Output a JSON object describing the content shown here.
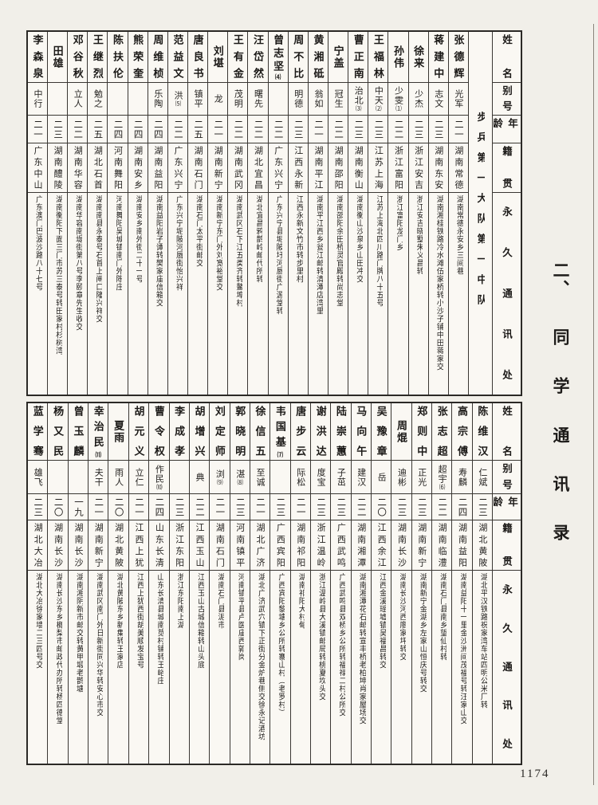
{
  "page": {
    "section_title": "二、同学通讯录",
    "page_number": "1174"
  },
  "table_headers": {
    "name": "姓名",
    "alias": "别号",
    "age": "年龄",
    "native_place": "籍贯",
    "address": "永久通讯处"
  },
  "sections": [
    {
      "unit": "步兵第一大队第一中队",
      "entries": [
        {
          "name": "张德辉",
          "alias": "光军",
          "age": "二一",
          "native": "湖南常德",
          "address": "湖南常德永安乡三间巷"
        },
        {
          "name": "蒋建中",
          "alias": "志文",
          "age": "二三",
          "native": "湖南东安",
          "address": "湖南湘桂铁路冷水滩伍家桥转小沙子铺中田蒋家交"
        },
        {
          "name": "徐来",
          "alias": "少杰",
          "age": "二三",
          "native": "浙江安吉",
          "address": "浙江安吉晓墅朱义昌转"
        },
        {
          "name": "孙伟",
          "alias": "少雯",
          "alias_note": "⑴",
          "age": "二二",
          "native": "浙江富阳",
          "address": "浙江富阳龙门乡"
        },
        {
          "name": "王福林",
          "alias": "中天",
          "alias_note": "⑵",
          "age": "二三",
          "native": "江苏上海",
          "address": "江苏上海北四川路门牌八十五号"
        },
        {
          "name": "曹正南",
          "alias": "治北",
          "alias_note": "⑶",
          "age": "二三",
          "native": "湖南衡山",
          "address": "湖南衡山沙泉乡山田冲交"
        },
        {
          "name": "宁盖",
          "alias": "冠生",
          "age": "二二",
          "native": "湖南邵阳",
          "address": "湖南邵阳余田桥灵官殿转尚志堂"
        },
        {
          "name": "黄湘砥",
          "alias": "翁如",
          "age": "二一",
          "native": "湖南平江",
          "address": "湖南平江西乡瓮江邮转清潭店湾里"
        },
        {
          "name": "周不比",
          "alias": "明德",
          "age": "二三",
          "native": "江西永新",
          "address": "江西永新文竹市转步里村"
        },
        {
          "name": "曾志坚",
          "name_note": "⑷",
          "alias": "",
          "age": "二二",
          "native": "广东兴宁",
          "address": "广东兴宁县坭陂圩河唇街广源堂转"
        },
        {
          "name": "汪岱然",
          "alias": "曙先",
          "age": "二二",
          "native": "湖北宜昌",
          "address": "湖北宜昌鸦鹊岭邮代所转"
        },
        {
          "name": "王有金",
          "alias": "茂明",
          "age": "二二",
          "native": "湖南武冈",
          "address": "湖南武冈石下江五类齐转鳌埠村"
        },
        {
          "name": "刘堪",
          "alias": "龙",
          "age": "二一",
          "native": "湖南新宁",
          "address": "湖南新宁东门外刘宽裕堂交"
        },
        {
          "name": "唐良书",
          "alias": "镇平",
          "age": "二五",
          "native": "湖南石门",
          "address": "湖南石门太平街邮交"
        },
        {
          "name": "范益文",
          "alias": "洪",
          "alias_note": "⑸",
          "age": "二二",
          "native": "广东兴宁",
          "address": "广东兴宁坭陂河唇街怡兴祥"
        },
        {
          "name": "周维桢",
          "alias": "乐陶",
          "age": "二四",
          "native": "湖南益阳",
          "address": "湖南益阳岩子谭转樊家庙信箱交"
        },
        {
          "name": "熊荣奎",
          "alias": "",
          "age": "二四",
          "native": "湖南安乡",
          "address": "湖南安乡南外街二十一号"
        },
        {
          "name": "陈扶伦",
          "alias": "",
          "age": "二四",
          "native": "河南舞阳",
          "address": "河南舞阳吴城镇南门外陈庄"
        },
        {
          "name": "王继烈",
          "alias": "勉之",
          "age": "二五",
          "native": "湖北石首",
          "address": "湖南南县永泰号石首上闸口隆兴祥交"
        },
        {
          "name": "邓谷秋",
          "alias": "立人",
          "age": "二二",
          "native": "湖南华容",
          "address": "湖南华容南堤街第八号李颐章先生收交"
        },
        {
          "name": "田雄",
          "alias": "",
          "age": "二三",
          "native": "湖南醴陵",
          "address": "湖南衡阳下面三门市苏三泰号转田家村杉树湾"
        },
        {
          "name": "李森泉",
          "alias": "中行",
          "age": "二一",
          "native": "广东中山",
          "address": "广东澳门巴波沙路八十七号"
        }
      ]
    },
    {
      "unit": null,
      "entries": [
        {
          "name": "陈维汉",
          "alias": "仁斌",
          "age": "二三",
          "native": "湖北黄陂",
          "address": "湖北平汉铁路祝家湾车站四明公米厂转"
        },
        {
          "name": "高宗傅",
          "alias": "寿麟",
          "age": "二四",
          "native": "湖南益阳",
          "address": "湖南益阳十一里金沙洲间茂福号转汪家山交"
        },
        {
          "name": "张志超",
          "alias": "超宇",
          "alias_note": "⑹",
          "age": "二二",
          "native": "湖南临澧",
          "address": "湖南石门县南乡望仙村转"
        },
        {
          "name": "郑则中",
          "alias": "正光",
          "age": "二三",
          "native": "湖南新宁",
          "address": "湖南新宁金湖乡左家山恒庆号转交"
        },
        {
          "name": "周焜",
          "alias": "迪彬",
          "age": "二三",
          "native": "湖南长沙",
          "address": "湖南长沙河西廖家坪转交"
        },
        {
          "name": "吴豫章",
          "alias": "岳",
          "age": "二〇",
          "native": "江西余江",
          "address": "江西金溪瑶墟镇吴福昌转交"
        },
        {
          "name": "马向午",
          "alias": "建汉",
          "age": "二二",
          "native": "湖南湘潭",
          "address": "湖南湘潭花石邮转宣丰桥老柏坤肖家屋场交"
        },
        {
          "name": "陆崇蕙",
          "alias": "子茁",
          "age": "二三",
          "native": "广西武鸣",
          "address": "广西武鸣县双桥乡公所转福禄二村公所交"
        },
        {
          "name": "谢洪达",
          "alias": "度宝",
          "age": "二三",
          "native": "浙江温岭",
          "address": "浙江温岭县大溪镇邮局转桃夏坎头交"
        },
        {
          "name": "唐步云",
          "alias": "际松",
          "age": "二一",
          "native": "湖南祁阳",
          "address": "湖南祁阳大村甸"
        },
        {
          "name": "韦国基",
          "name_note": "⑺",
          "alias": "",
          "age": "二三",
          "native": "广西宾阳",
          "address": "广西宾阳黎塘乡公所转寨山村（老罗村）"
        },
        {
          "name": "徐信五",
          "alias": "至诚",
          "age": "二一",
          "native": "湖北广济",
          "address": "湖北广济武穴镇下正街分金炉巷侧交徐永记酒坊"
        },
        {
          "name": "郭晓明",
          "alias": "湛",
          "alias_note": "⑻",
          "age": "二三",
          "native": "河南镇平",
          "address": "河南镇平县卢医庙西郭岗"
        },
        {
          "name": "刘定师",
          "alias": "浏",
          "alias_note": "⑼",
          "age": "二一",
          "native": "湖南石门",
          "address": "湖南石门县泥市"
        },
        {
          "name": "胡增兴",
          "alias": "典",
          "age": "二二",
          "native": "江西玉山",
          "address": "江西玉山古城信箱转山头底"
        },
        {
          "name": "李成孝",
          "alias": "",
          "age": "二三",
          "native": "浙江东阳",
          "address": "浙江东阳南上湖"
        },
        {
          "name": "曹令权",
          "alias": "作民",
          "alias_note": "⑽",
          "age": "二四",
          "native": "山东长清",
          "address": "山东长清县城南苋村铺转王峪庄"
        },
        {
          "name": "胡元义",
          "alias": "立仁",
          "age": "二一",
          "native": "江西上犹",
          "address": "江西上犹西街胡美顺发宝号"
        },
        {
          "name": "夏雨",
          "alias": "雨人",
          "age": "二〇",
          "native": "湖北黄陂",
          "address": "湖北黄陂东乡新集转王家店"
        },
        {
          "name": "幸治民",
          "name_note": "⑾",
          "alias": "夫干",
          "age": "二一",
          "native": "湖南新宁",
          "address": "湖南武冈南门外日新街同兴华转安心市交"
        },
        {
          "name": "曾玉麟",
          "alias": "",
          "age": "一九",
          "native": "湖南长沙",
          "address": "湖南湘阴新市邮交转黄甲塅老鹊塘"
        },
        {
          "name": "杨又民",
          "alias": "",
          "age": "二〇",
          "native": "湖南长沙",
          "address": "湖南长沙东乡榔梨市邮政代办所转杨四德堂"
        },
        {
          "name": "蓝学骞",
          "alias": "雄飞",
          "age": "二三",
          "native": "湖北大冶",
          "address": "湖北大冶徐家墙二三四号交"
        }
      ]
    }
  ]
}
